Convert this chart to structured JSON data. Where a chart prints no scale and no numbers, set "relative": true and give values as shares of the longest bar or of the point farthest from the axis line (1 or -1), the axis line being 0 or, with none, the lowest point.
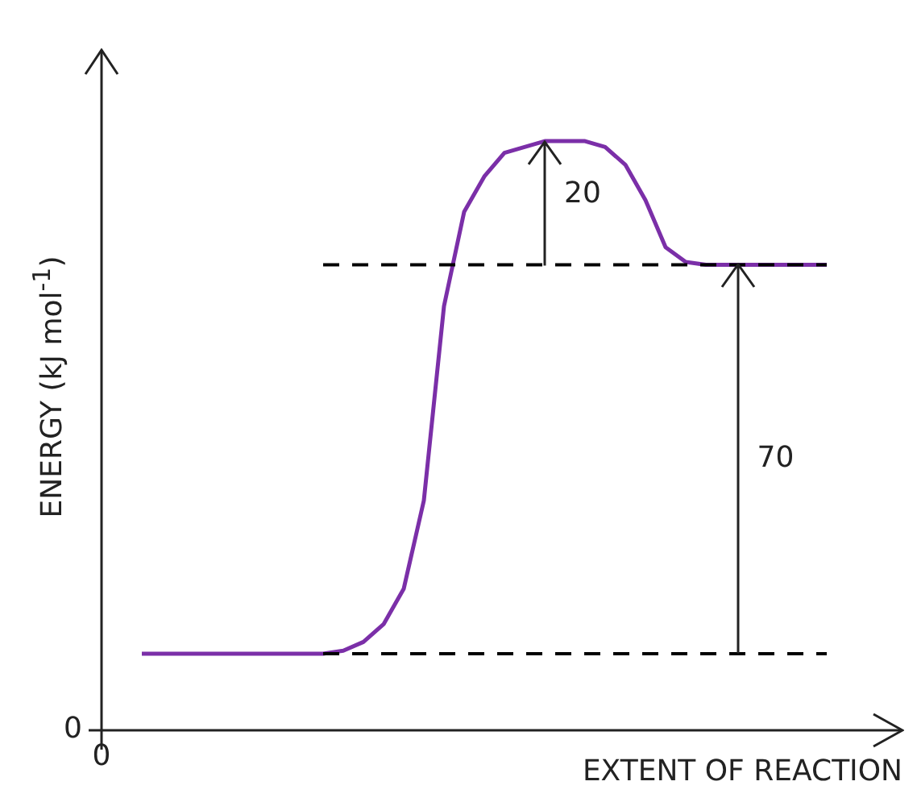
{
  "chart_data": {
    "type": "line",
    "xlabel": "EXTENT OF REACTION",
    "ylabel": "ENERGY (kJ mol$^{-1}$)",
    "relative": true,
    "marker": "none",
    "categories": [
      null,
      null,
      null,
      null,
      null,
      null,
      null,
      null,
      null,
      null,
      null,
      null,
      null,
      null,
      null,
      null,
      null,
      null,
      null,
      null,
      null,
      null,
      null,
      null,
      null,
      null,
      null,
      null,
      null,
      null,
      null,
      null,
      null,
      null,
      null
    ],
    "series": [
      {
        "color": "#7b2fa8",
        "values": [
          0.13,
          0.13,
          0.13,
          0.13,
          0.13,
          0.13,
          0.13,
          0.13,
          0.13,
          0.13,
          0.135,
          0.15,
          0.18,
          0.24,
          0.39,
          0.72,
          0.88,
          0.94,
          0.98,
          0.99,
          1,
          1,
          1,
          0.99,
          0.96,
          0.9,
          0.82,
          0.795,
          0.79,
          0.79,
          0.79,
          0.79,
          0.79,
          0.79,
          0.79
        ]
      }
    ],
    "ref_lines": [
      {
        "axis": "y",
        "value": 0.79,
        "color": "#000000",
        "line_style": "dashed"
      },
      {
        "axis": "y",
        "value": 0.13,
        "color": "#000000",
        "line_style": "dashed"
      }
    ],
    "annotations": [
      "0",
      "0",
      "20",
      "70"
    ]
  }
}
